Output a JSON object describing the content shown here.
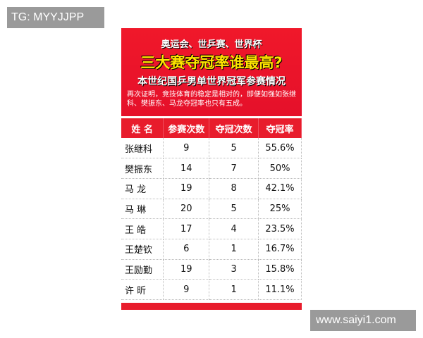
{
  "watermarks": {
    "top_left": "TG: MYYJJPP",
    "bottom_right": "www.saiyi1.com"
  },
  "poster": {
    "line1": "奥运会、世乒赛、世界杯",
    "title": "三大赛夺冠率谁最高?",
    "subtitle": "本世纪国乒男单世界冠军参赛情况",
    "note": "再次证明，竞技体育的稳定是相对的，即便如强如张继科、樊振东、马龙夺冠率也只有五成。",
    "colors": {
      "red": "#e81c2c",
      "yellow": "#ffe400"
    }
  },
  "table": {
    "headers": [
      "姓 名",
      "参赛次数",
      "夺冠次数",
      "夺冠率"
    ],
    "rows": [
      [
        "张继科",
        "9",
        "5",
        "55.6%"
      ],
      [
        "樊振东",
        "14",
        "7",
        "50%"
      ],
      [
        "马 龙",
        "19",
        "8",
        "42.1%"
      ],
      [
        "马 琳",
        "20",
        "5",
        "25%"
      ],
      [
        "王 皓",
        "17",
        "4",
        "23.5%"
      ],
      [
        "王楚钦",
        "6",
        "1",
        "16.7%"
      ],
      [
        "王励勤",
        "19",
        "3",
        "15.8%"
      ],
      [
        "许 昕",
        "9",
        "1",
        "11.1%"
      ]
    ]
  }
}
